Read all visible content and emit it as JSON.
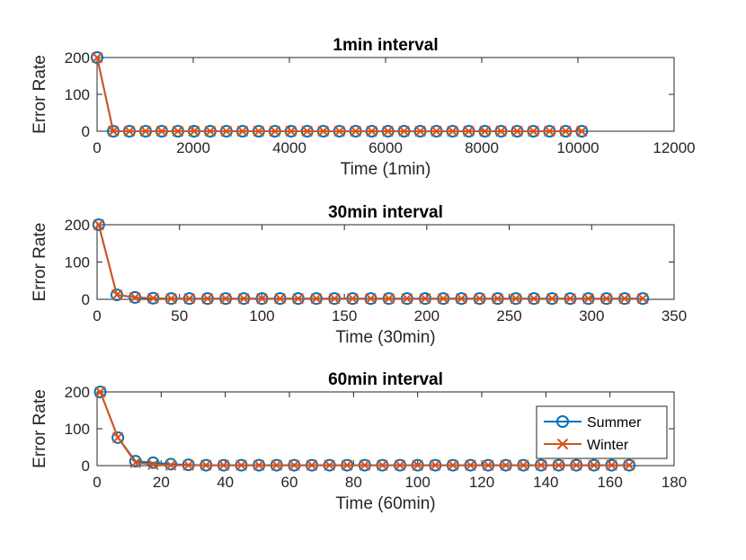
{
  "colors": {
    "summer": "#0072BD",
    "winter": "#D95319"
  },
  "legend": {
    "placement": "right",
    "items": [
      {
        "name": "Summer",
        "marker": "circle"
      },
      {
        "name": "Winter",
        "marker": "x"
      }
    ]
  },
  "chart_data": [
    {
      "type": "line",
      "title": "1min interval",
      "xlabel": "Time (1min)",
      "ylabel": "Error Rate",
      "xlim": [
        0,
        12000
      ],
      "ylim": [
        0,
        200
      ],
      "xticks": [
        0,
        2000,
        4000,
        6000,
        8000,
        10000,
        12000
      ],
      "yticks": [
        0,
        100,
        200
      ],
      "grid": false,
      "series": [
        {
          "name": "Summer",
          "x": [
            1,
            337,
            673,
            1009,
            1345,
            1681,
            2017,
            2353,
            2689,
            3025,
            3361,
            3697,
            4033,
            4369,
            4705,
            5041,
            5377,
            5713,
            6049,
            6385,
            6721,
            7057,
            7393,
            7729,
            8065,
            8401,
            8737,
            9073,
            9409,
            9745,
            10081
          ],
          "y": [
            200,
            0,
            0,
            0,
            0,
            0,
            0,
            0,
            0,
            0,
            0,
            0,
            0,
            0,
            0,
            0,
            0,
            0,
            0,
            0,
            0,
            0,
            0,
            0,
            0,
            0,
            0,
            0,
            0,
            0,
            0
          ]
        },
        {
          "name": "Winter",
          "x": [
            1,
            337,
            673,
            1009,
            1345,
            1681,
            2017,
            2353,
            2689,
            3025,
            3361,
            3697,
            4033,
            4369,
            4705,
            5041,
            5377,
            5713,
            6049,
            6385,
            6721,
            7057,
            7393,
            7729,
            8065,
            8401,
            8737,
            9073,
            9409,
            9745,
            10081
          ],
          "y": [
            200,
            0,
            0,
            0,
            0,
            0,
            0,
            0,
            0,
            0,
            0,
            0,
            0,
            0,
            0,
            0,
            0,
            0,
            0,
            0,
            0,
            0,
            0,
            0,
            0,
            0,
            0,
            0,
            0,
            0,
            0
          ]
        }
      ]
    },
    {
      "type": "line",
      "title": "30min interval",
      "xlabel": "Time (30min)",
      "ylabel": "Error Rate",
      "xlim": [
        0,
        350
      ],
      "ylim": [
        0,
        200
      ],
      "xticks": [
        0,
        50,
        100,
        150,
        200,
        250,
        300,
        350
      ],
      "yticks": [
        0,
        100,
        200
      ],
      "grid": false,
      "series": [
        {
          "name": "Summer",
          "x": [
            1,
            12,
            23,
            34,
            45,
            56,
            67,
            78,
            89,
            100,
            111,
            122,
            133,
            144,
            155,
            166,
            177,
            188,
            199,
            210,
            221,
            232,
            243,
            254,
            265,
            276,
            287,
            298,
            309,
            320,
            331
          ],
          "y": [
            200,
            12,
            5,
            3,
            2,
            2,
            2,
            2,
            2,
            2,
            2,
            2,
            2,
            2,
            2,
            2,
            2,
            2,
            2,
            2,
            2,
            2,
            2,
            2,
            2,
            2,
            2,
            2,
            2,
            2,
            2
          ]
        },
        {
          "name": "Winter",
          "x": [
            1,
            12,
            23,
            34,
            45,
            56,
            67,
            78,
            89,
            100,
            111,
            122,
            133,
            144,
            155,
            166,
            177,
            188,
            199,
            210,
            221,
            232,
            243,
            254,
            265,
            276,
            287,
            298,
            309,
            320,
            331
          ],
          "y": [
            200,
            12,
            5,
            3,
            2,
            2,
            2,
            2,
            2,
            2,
            2,
            2,
            2,
            2,
            2,
            2,
            2,
            2,
            2,
            2,
            2,
            2,
            2,
            2,
            2,
            2,
            2,
            2,
            2,
            2,
            2
          ]
        }
      ]
    },
    {
      "type": "line",
      "title": "60min interval",
      "xlabel": "Time (60min)",
      "ylabel": "Error Rate",
      "xlim": [
        0,
        180
      ],
      "ylim": [
        0,
        200
      ],
      "xticks": [
        0,
        20,
        40,
        60,
        80,
        100,
        120,
        140,
        160,
        180
      ],
      "yticks": [
        0,
        100,
        200
      ],
      "grid": false,
      "series": [
        {
          "name": "Summer",
          "x": [
            1,
            6.5,
            12,
            17.5,
            23,
            28.5,
            34,
            39.5,
            45,
            50.5,
            56,
            61.5,
            67,
            72.5,
            78,
            83.5,
            89,
            94.5,
            100,
            105.5,
            111,
            116.5,
            122,
            127.5,
            133,
            138.5,
            144,
            149.5,
            155,
            160.5,
            166
          ],
          "y": [
            200,
            76,
            12,
            8,
            4,
            2,
            1,
            1,
            1,
            1,
            1,
            1,
            1,
            1,
            1,
            1,
            1,
            1,
            1,
            1,
            1,
            1,
            1,
            1,
            1,
            1,
            1,
            1,
            1,
            1,
            1
          ]
        },
        {
          "name": "Winter",
          "x": [
            1,
            6.5,
            12,
            17.5,
            23,
            28.5,
            34,
            39.5,
            45,
            50.5,
            56,
            61.5,
            67,
            72.5,
            78,
            83.5,
            89,
            94.5,
            100,
            105.5,
            111,
            116.5,
            122,
            127.5,
            133,
            138.5,
            144,
            149.5,
            155,
            160.5,
            166
          ],
          "y": [
            200,
            76,
            8,
            3,
            1,
            1,
            1,
            1,
            1,
            1,
            1,
            1,
            1,
            1,
            1,
            1,
            1,
            1,
            1,
            1,
            1,
            1,
            1,
            1,
            1,
            1,
            1,
            1,
            1,
            1,
            1
          ]
        }
      ]
    }
  ]
}
